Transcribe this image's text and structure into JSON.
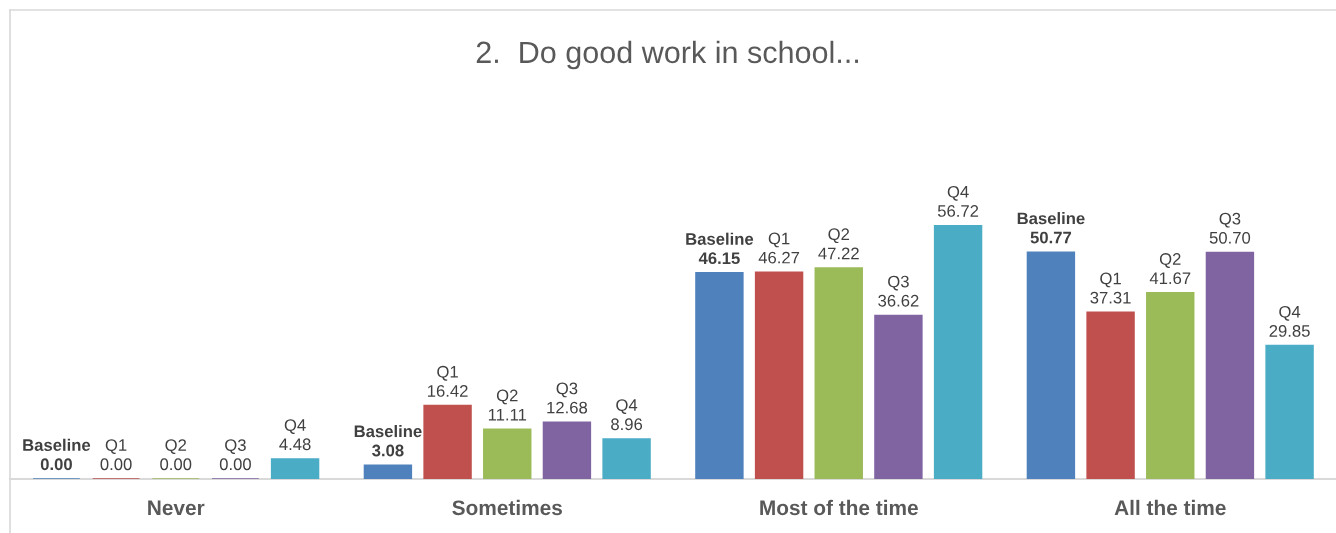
{
  "chart_data": {
    "type": "bar",
    "title": "2.  Do good work in school...",
    "categories": [
      "Never",
      "Sometimes",
      "Most of the time",
      "All the time"
    ],
    "series": [
      {
        "name": "Baseline",
        "color": "#4f81bd",
        "values": [
          0,
          3.08,
          46.15,
          50.77
        ],
        "value_labels": [
          "0.00",
          "3.08",
          "46.15",
          "50.77"
        ]
      },
      {
        "name": "Q1",
        "color": "#c0504d",
        "values": [
          0,
          16.42,
          46.27,
          37.31
        ],
        "value_labels": [
          "0.00",
          "16.42",
          "46.27",
          "37.31"
        ]
      },
      {
        "name": "Q2",
        "color": "#9bbb59",
        "values": [
          0,
          11.11,
          47.22,
          41.67
        ],
        "value_labels": [
          "0.00",
          "11.11",
          "47.22",
          "41.67"
        ]
      },
      {
        "name": "Q3",
        "color": "#8064a2",
        "values": [
          0,
          12.68,
          36.62,
          50.7
        ],
        "value_labels": [
          "0.00",
          "12.68",
          "36.62",
          "50.70"
        ]
      },
      {
        "name": "Q4",
        "color": "#4bacc6",
        "values": [
          4.48,
          8.96,
          56.72,
          29.85
        ],
        "value_labels": [
          "4.48",
          "8.96",
          "56.72",
          "29.85"
        ]
      }
    ]
  }
}
